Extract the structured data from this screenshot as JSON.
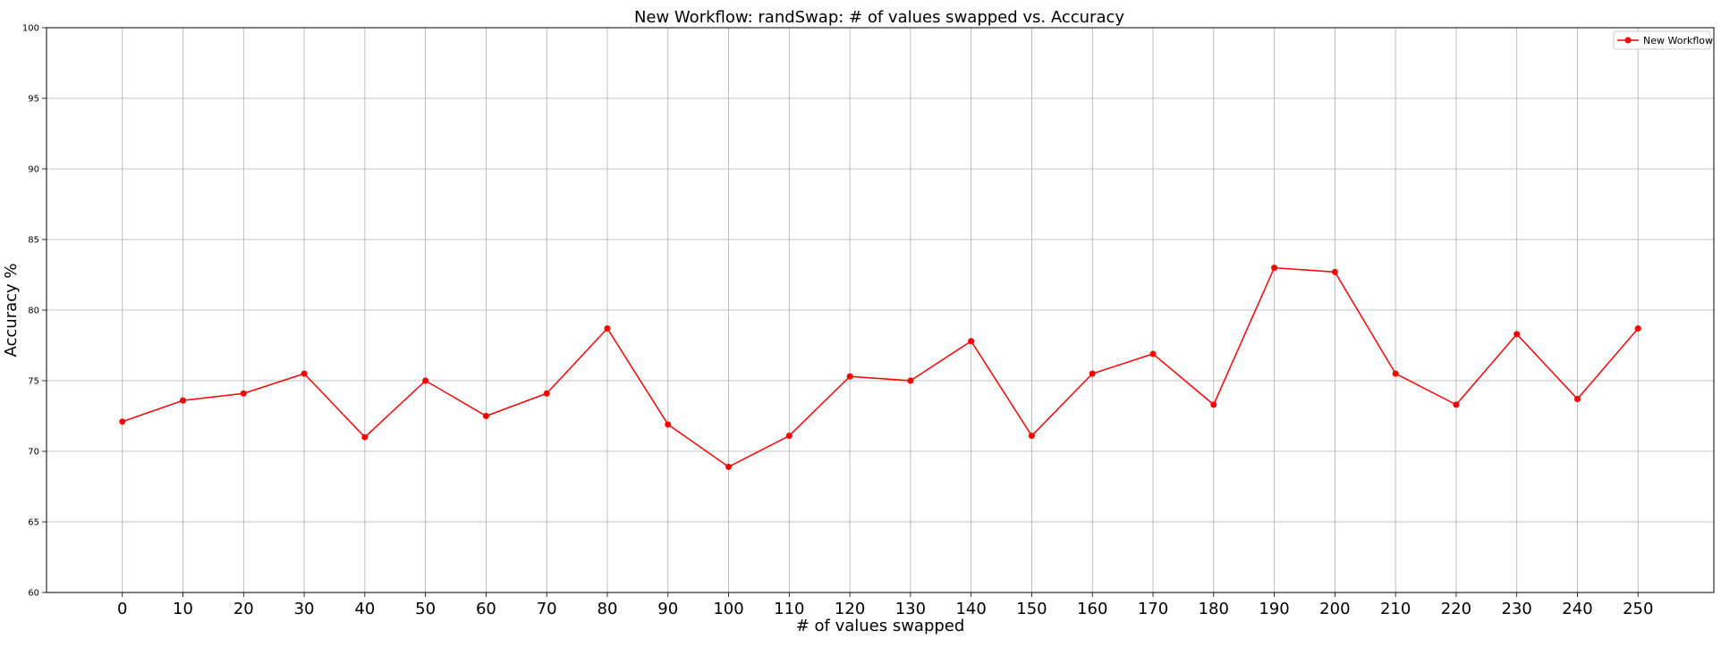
{
  "chart_data": {
    "type": "line",
    "title": "New Workflow: randSwap: # of values swapped vs. Accuracy",
    "xlabel": "# of values swapped",
    "ylabel": "Accuracy %",
    "x": [
      0,
      10,
      20,
      30,
      40,
      50,
      60,
      70,
      80,
      90,
      100,
      110,
      120,
      130,
      140,
      150,
      160,
      170,
      180,
      190,
      200,
      210,
      220,
      230,
      240,
      250
    ],
    "x_ticks": [
      "0",
      "10",
      "20",
      "30",
      "40",
      "50",
      "60",
      "70",
      "80",
      "90",
      "100",
      "110",
      "120",
      "130",
      "140",
      "150",
      "160",
      "170",
      "180",
      "190",
      "200",
      "210",
      "220",
      "230",
      "240",
      "250"
    ],
    "xlim": [
      -12.5,
      262.5
    ],
    "ylim": [
      60,
      100
    ],
    "y_ticks": [
      "60",
      "65",
      "70",
      "75",
      "80",
      "85",
      "90",
      "95",
      "100"
    ],
    "grid": true,
    "legend_position": "top-right",
    "series": [
      {
        "name": "New Workflow",
        "color": "#ff0000",
        "marker": "circle",
        "values": [
          72.1,
          73.6,
          74.1,
          75.5,
          71.0,
          75.0,
          72.5,
          74.1,
          78.7,
          71.9,
          68.9,
          71.1,
          75.3,
          75.0,
          77.8,
          71.1,
          75.5,
          76.9,
          73.3,
          83.0,
          82.7,
          75.5,
          73.3,
          78.3,
          73.7,
          78.7
        ]
      }
    ]
  }
}
